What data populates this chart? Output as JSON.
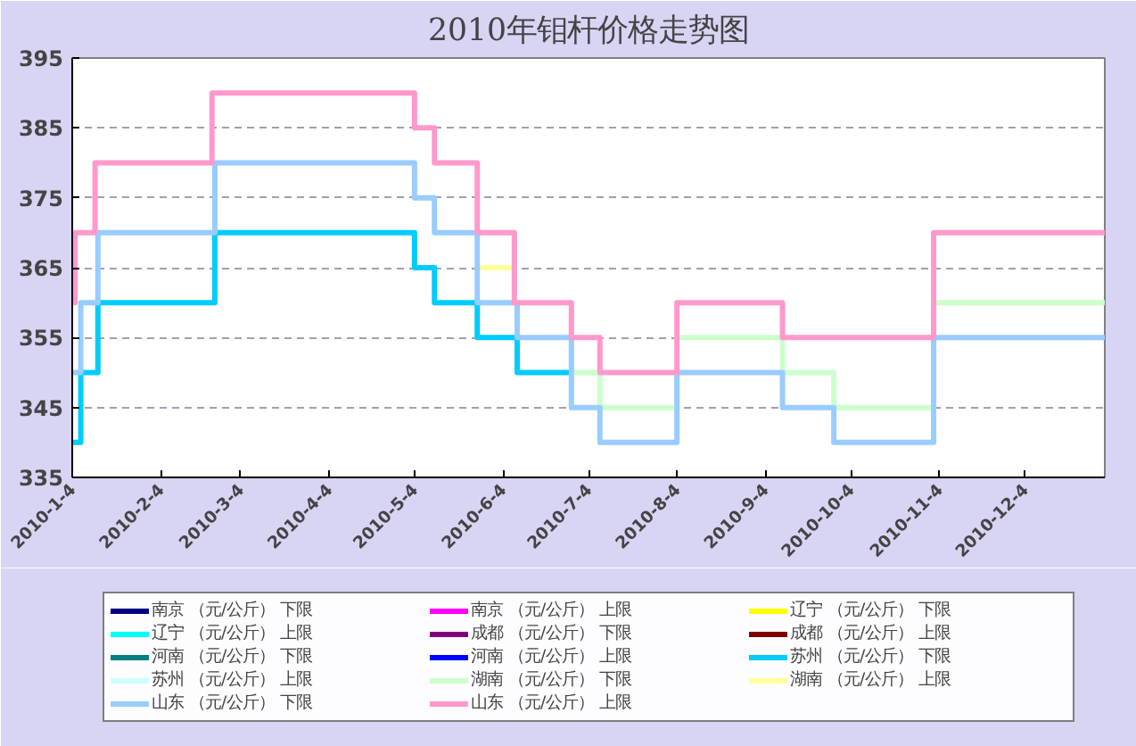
{
  "chart_data": {
    "type": "step",
    "title": "2010年钼杆价格走势图",
    "xlim": [
      "2010-01-04",
      "2011-01-01"
    ],
    "ylim": [
      335,
      395
    ],
    "yticks": [
      335,
      345,
      355,
      365,
      375,
      385,
      395
    ],
    "xticks": [
      {
        "value": "2010-01-04",
        "label": "2010-1-4"
      },
      {
        "value": "2010-02-04",
        "label": "2010-2-4"
      },
      {
        "value": "2010-03-04",
        "label": "2010-3-4"
      },
      {
        "value": "2010-04-04",
        "label": "2010-4-4"
      },
      {
        "value": "2010-05-04",
        "label": "2010-5-4"
      },
      {
        "value": "2010-06-04",
        "label": "2010-6-4"
      },
      {
        "value": "2010-07-04",
        "label": "2010-7-4"
      },
      {
        "value": "2010-08-04",
        "label": "2010-8-4"
      },
      {
        "value": "2010-09-04",
        "label": "2010-9-4"
      },
      {
        "value": "2010-10-04",
        "label": "2010-10-4"
      },
      {
        "value": "2010-11-04",
        "label": "2010-11-4"
      },
      {
        "value": "2010-12-04",
        "label": "2010-12-4"
      }
    ],
    "grid": "y",
    "legend": "bottom",
    "series": [
      {
        "name": "南京 （元/公斤） 下限",
        "color": "#000080"
      },
      {
        "name": "南京 （元/公斤） 上限",
        "color": "#ff00ff"
      },
      {
        "name": "辽宁 （元/公斤） 下限",
        "color": "#ffff00"
      },
      {
        "name": "辽宁 （元/公斤） 上限",
        "color": "#00ffff"
      },
      {
        "name": "成都 （元/公斤） 下限",
        "color": "#800080"
      },
      {
        "name": "成都 （元/公斤） 上限",
        "color": "#800000"
      },
      {
        "name": "河南 （元/公斤） 下限",
        "color": "#008080"
      },
      {
        "name": "河南 （元/公斤） 上限",
        "color": "#0000ff"
      },
      {
        "name": "苏州 （元/公斤） 下限",
        "color": "#00ccff",
        "x": [
          "2010-01-04",
          "2010-01-07",
          "2010-01-13",
          "2010-02-23",
          "2010-05-04",
          "2010-05-11",
          "2010-05-26",
          "2010-06-09",
          "2010-06-28"
        ],
        "values": [
          340,
          350,
          360,
          370,
          365,
          360,
          355,
          350,
          350
        ]
      },
      {
        "name": "苏州 （元/公斤） 上限",
        "color": "#ccffff"
      },
      {
        "name": "湖南 （元/公斤） 下限",
        "color": "#ccffcc",
        "x": [
          "2010-06-28",
          "2010-07-08",
          "2010-08-04",
          "2010-09-10",
          "2010-09-28",
          "2010-11-02",
          "2011-01-01"
        ],
        "values": [
          350,
          345,
          355,
          350,
          345,
          360,
          360
        ]
      },
      {
        "name": "湖南 （元/公斤） 上限",
        "color": "#ffff99",
        "x": [
          "2010-05-26",
          "2010-06-08"
        ],
        "values": [
          365,
          365
        ]
      },
      {
        "name": "山东 （元/公斤） 下限",
        "color": "#99ccff",
        "x": [
          "2010-01-04",
          "2010-01-07",
          "2010-01-13",
          "2010-02-23",
          "2010-05-04",
          "2010-05-11",
          "2010-05-26",
          "2010-06-09",
          "2010-06-28",
          "2010-07-08",
          "2010-08-04",
          "2010-09-10",
          "2010-09-28",
          "2010-11-02",
          "2011-01-01"
        ],
        "values": [
          350,
          360,
          370,
          380,
          375,
          370,
          360,
          355,
          345,
          340,
          350,
          345,
          340,
          355,
          355
        ]
      },
      {
        "name": "山东 （元/公斤） 上限",
        "color": "#ff99cc",
        "x": [
          "2010-01-04",
          "2010-01-05",
          "2010-01-12",
          "2010-02-22",
          "2010-05-04",
          "2010-05-11",
          "2010-05-26",
          "2010-06-08",
          "2010-06-28",
          "2010-07-08",
          "2010-08-04",
          "2010-09-10",
          "2010-11-02",
          "2011-01-01"
        ],
        "values": [
          360,
          370,
          380,
          390,
          385,
          380,
          370,
          360,
          355,
          350,
          360,
          355,
          370,
          370
        ]
      }
    ]
  }
}
